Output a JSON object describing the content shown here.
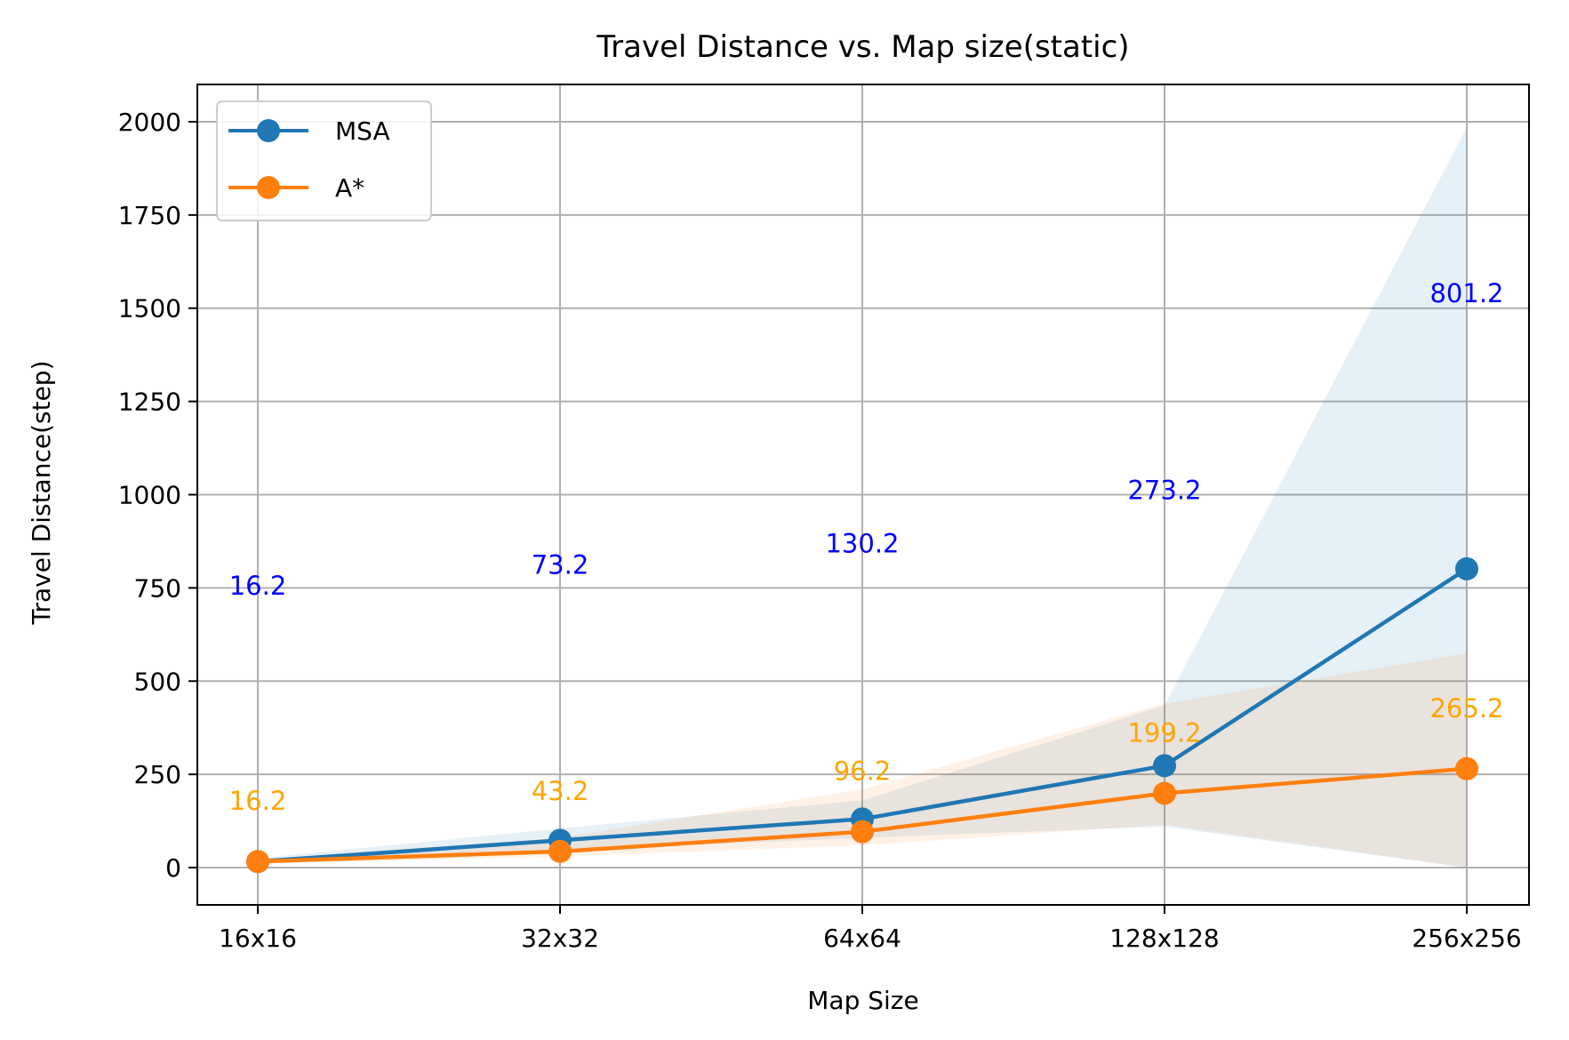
{
  "chart_data": {
    "type": "line",
    "title": "Travel Distance vs. Map size(static)",
    "xlabel": "Map Size",
    "ylabel": "Travel Distance(step)",
    "categories": [
      "16x16",
      "32x32",
      "64x64",
      "128x128",
      "256x256"
    ],
    "ylim": [
      -100,
      2100
    ],
    "yticks": [
      0,
      250,
      500,
      750,
      1000,
      1250,
      1500,
      1750,
      2000
    ],
    "grid": true,
    "legend_position": "top-left",
    "series": [
      {
        "name": "MSA",
        "color": "#1f77b4",
        "label_color": "#0000ff",
        "values": [
          16.2,
          73.2,
          130.2,
          273.2,
          801.2
        ],
        "band_lower": [
          10,
          45,
          80,
          110,
          0
        ],
        "band_upper": [
          25,
          105,
          180,
          435,
          1985
        ],
        "labels": [
          "16.2",
          "73.2",
          "130.2",
          "273.2",
          "801.2"
        ]
      },
      {
        "name": "A*",
        "color": "#ff7f0e",
        "label_color": "#ffa500",
        "values": [
          16.2,
          43.2,
          96.2,
          199.2,
          265.2
        ],
        "band_lower": [
          10,
          30,
          60,
          115,
          0
        ],
        "band_upper": [
          22,
          80,
          210,
          440,
          575
        ],
        "labels": [
          "16.2",
          "43.2",
          "96.2",
          "199.2",
          "265.2"
        ]
      }
    ]
  }
}
